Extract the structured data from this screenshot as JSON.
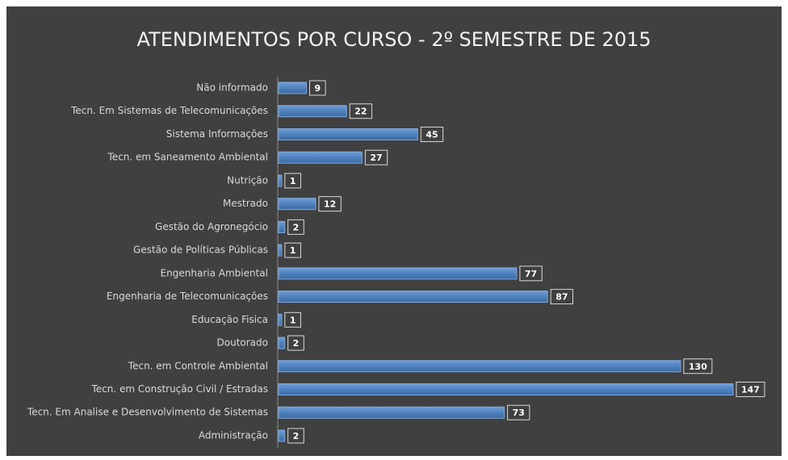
{
  "chart_data": {
    "type": "bar",
    "orientation": "horizontal",
    "title": "ATENDIMENTOS POR CURSO - 2º SEMESTRE DE 2015",
    "categories": [
      "Não informado",
      "Tecn. Em Sistemas de Telecomunicações",
      "Sistema Informações",
      "Tecn. em Saneamento Ambiental",
      "Nutrição",
      "Mestrado",
      "Gestão do Agronegócio",
      "Gestão de Políticas Públicas",
      "Engenharia Ambiental",
      "Engenharia de Telecomunicações",
      "Educação Fisica",
      "Doutorado",
      "Tecn. em Controle Ambiental",
      "Tecn. em Construção Civil / Estradas",
      "Tecn. Em Analise e Desenvolvimento de Sistemas",
      "Administração"
    ],
    "values": [
      9,
      22,
      45,
      27,
      1,
      12,
      2,
      1,
      77,
      87,
      1,
      2,
      130,
      147,
      73,
      2
    ],
    "color": "#4f81bd"
  }
}
